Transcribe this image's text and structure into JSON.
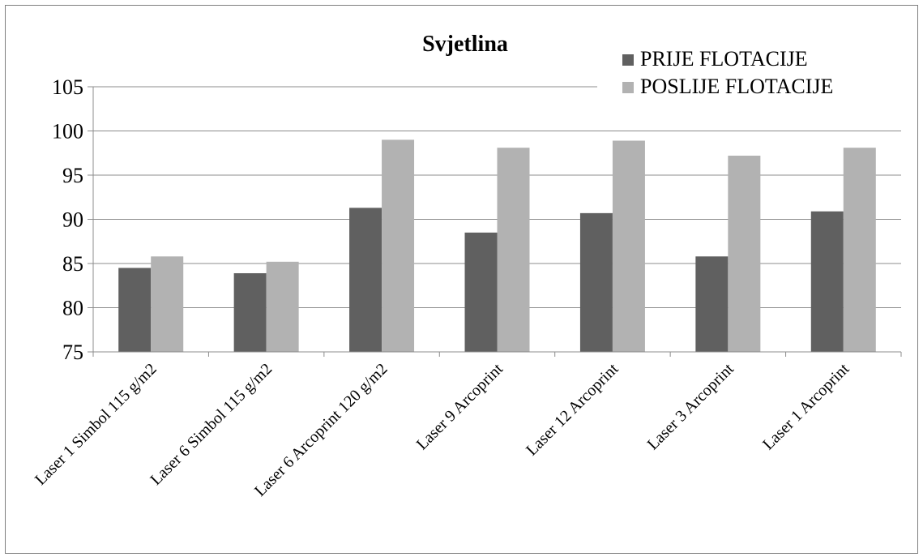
{
  "chart_data": {
    "type": "bar",
    "title": "Svjetlina",
    "xlabel": "",
    "ylabel": "",
    "ylim": [
      75,
      105
    ],
    "yticks": [
      75,
      80,
      85,
      90,
      95,
      100,
      105
    ],
    "grid": true,
    "legend_position": "top-right",
    "categories": [
      "Laser 1 Simbol 115 g/m2",
      "Laser 6 Simbol 115 g/m2",
      "Laser 6 Arcoprint 120 g/m2",
      "Laser 9 Arcoprint",
      "Laser 12 Arcoprint",
      "Laser 3 Arcoprint",
      "Laser 1 Arcoprint"
    ],
    "series": [
      {
        "name": "PRIJE FLOTACIJE",
        "color": "#606060",
        "values": [
          84.5,
          83.9,
          91.3,
          88.5,
          90.7,
          85.8,
          90.9
        ]
      },
      {
        "name": "POSLIJE FLOTACIJE",
        "color": "#b2b2b2",
        "values": [
          85.8,
          85.2,
          99.0,
          98.1,
          98.9,
          97.2,
          98.1
        ]
      }
    ]
  }
}
